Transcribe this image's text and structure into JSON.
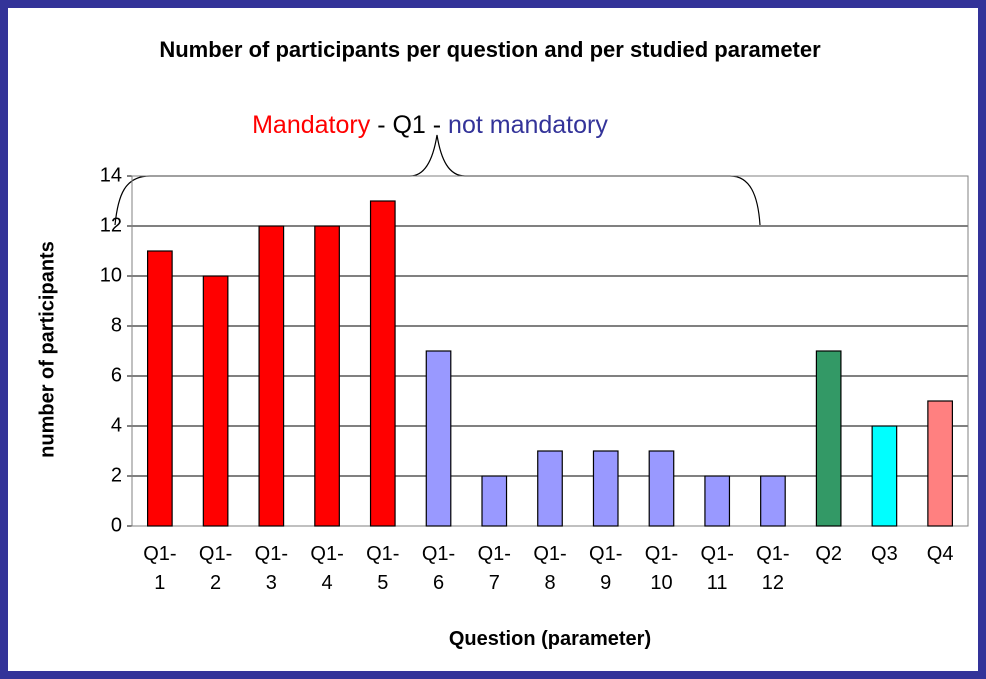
{
  "chart_data": {
    "type": "bar",
    "title": "Number of participants per question and per studied parameter",
    "annotation": {
      "parts": [
        {
          "text": "Mandatory",
          "color": "#ff0000"
        },
        {
          "text": "- Q1 -",
          "color": "#000000"
        },
        {
          "text": "not mandatory",
          "color": "#333399"
        }
      ]
    },
    "x_label": "Question (parameter)",
    "y_label": "number of participants",
    "categories": [
      "Q1-1",
      "Q1-2",
      "Q1-3",
      "Q1-4",
      "Q1-5",
      "Q1-6",
      "Q1-7",
      "Q1-8",
      "Q1-9",
      "Q1-10",
      "Q1-11",
      "Q1-12",
      "Q2",
      "Q3",
      "Q4"
    ],
    "values": [
      11,
      10,
      12,
      12,
      13,
      7,
      2,
      3,
      3,
      3,
      2,
      2,
      7,
      4,
      5
    ],
    "colors": [
      "#ff0000",
      "#ff0000",
      "#ff0000",
      "#ff0000",
      "#ff0000",
      "#9999ff",
      "#9999ff",
      "#9999ff",
      "#9999ff",
      "#9999ff",
      "#9999ff",
      "#9999ff",
      "#339966",
      "#00ffff",
      "#ff8080"
    ],
    "ylim": [
      0,
      14
    ],
    "yticks": [
      0,
      2,
      4,
      6,
      8,
      10,
      12,
      14
    ],
    "grid": true
  }
}
